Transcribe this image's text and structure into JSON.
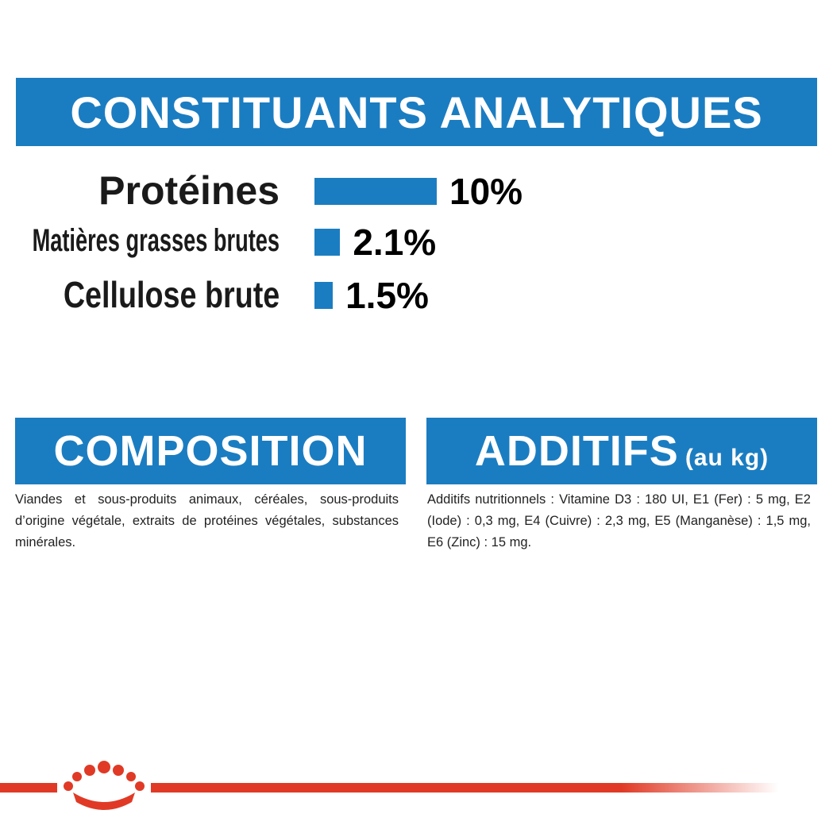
{
  "analytics": {
    "title": "CONSTITUANTS ANALYTIQUES",
    "rows": [
      {
        "label": "Protéines",
        "value": 10,
        "value_label": "10%"
      },
      {
        "label": "Matières grasses brutes",
        "value": 2.1,
        "value_label": "2.1%"
      },
      {
        "label": "Cellulose brute",
        "value": 1.5,
        "value_label": "1.5%"
      }
    ]
  },
  "composition": {
    "title": "COMPOSITION",
    "text": "Viandes et sous-produits animaux, céréales, sous-produits d’origine végétale, extraits de protéines végétales, substances minérales."
  },
  "additives": {
    "title": "ADDITIFS",
    "subtitle": "(au kg)",
    "text": "Additifs nutritionnels : Vitamine D3 : 180 UI, E1 (Fer) : 5 mg, E2 (Iode) : 0,3 mg, E4 (Cuivre) : 2,3 mg, E5 (Manganèse) : 1,5 mg, E6 (Zinc) : 15 mg."
  }
}
